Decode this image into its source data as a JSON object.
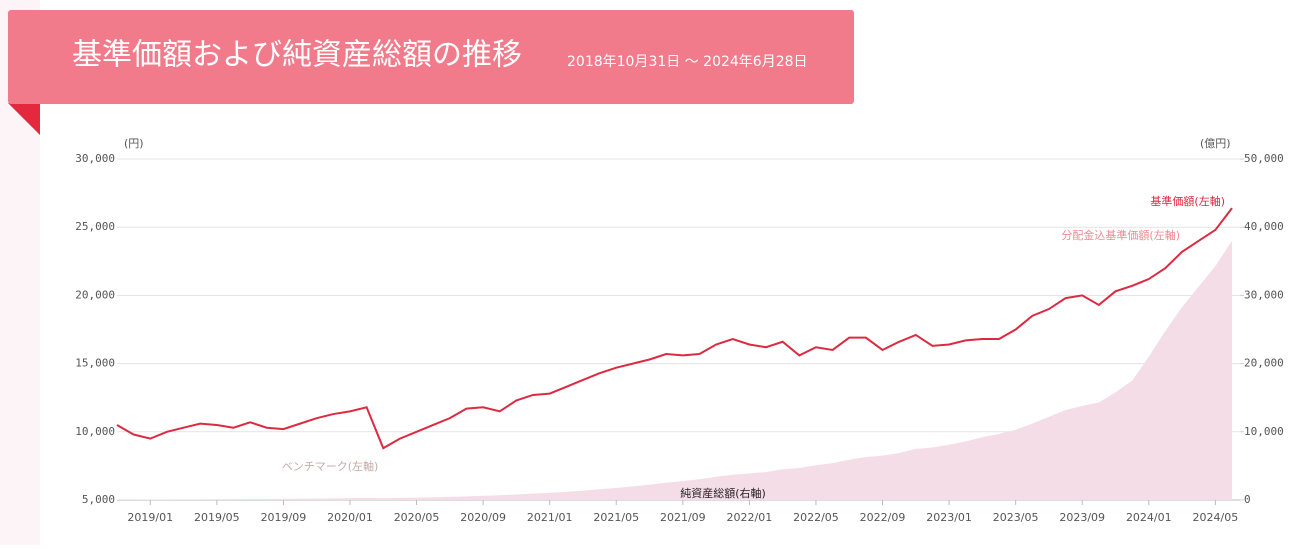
{
  "chart_data": {
    "type": "line",
    "title": "基準価額および純資産総額の推移",
    "subtitle": "2018年10月31日 ～ 2024年6月28日",
    "y_label": "(円)",
    "y2_label": "(億円)",
    "annotations": [
      "分配金込基準価額(左軸)",
      "ベンチマーク(左軸)"
    ],
    "grid": true,
    "categories": [
      null,
      null,
      "2019/01",
      null,
      null,
      null,
      "2019/05",
      null,
      null,
      null,
      "2019/09",
      null,
      null,
      null,
      "2020/01",
      null,
      null,
      null,
      "2020/05",
      null,
      null,
      null,
      "2020/09",
      null,
      null,
      null,
      "2021/01",
      null,
      null,
      null,
      "2021/05",
      null,
      null,
      null,
      "2021/09",
      null,
      null,
      null,
      "2022/01",
      null,
      null,
      null,
      "2022/05",
      null,
      null,
      null,
      "2022/09",
      null,
      null,
      null,
      "2023/01",
      null,
      null,
      null,
      "2023/05",
      null,
      null,
      null,
      "2023/09",
      null,
      null,
      null,
      "2024/01",
      null,
      null,
      null,
      "2024/05",
      null
    ],
    "ylim": [
      5000,
      30000
    ],
    "yticks": [
      {
        "value": 5000,
        "label": "5,000"
      },
      {
        "value": 10000,
        "label": "10,000"
      },
      {
        "value": 15000,
        "label": "15,000"
      },
      {
        "value": 20000,
        "label": "20,000"
      },
      {
        "value": 25000,
        "label": "25,000"
      },
      {
        "value": 30000,
        "label": "30,000"
      }
    ],
    "y2lim": [
      0,
      50000
    ],
    "y2ticks": [
      0,
      {
        "value": 10000,
        "label": "10,000"
      },
      {
        "value": 20000,
        "label": "20,000"
      },
      {
        "value": 30000,
        "label": "30,000"
      },
      {
        "value": 40000,
        "label": "40,000"
      },
      {
        "value": 50000,
        "label": "50,000"
      }
    ],
    "series": [
      {
        "name": "純資産総額(右軸)",
        "color": "#f5dde8",
        "axis": "y2",
        "values": [
          50,
          60,
          70,
          80,
          90,
          100,
          110,
          120,
          140,
          150,
          170,
          190,
          210,
          240,
          270,
          290,
          260,
          300,
          340,
          400,
          460,
          540,
          620,
          690,
          800,
          940,
          1060,
          1200,
          1380,
          1570,
          1780,
          2000,
          2250,
          2530,
          2780,
          3050,
          3400,
          3700,
          3900,
          4100,
          4500,
          4700,
          5100,
          5400,
          5900,
          6300,
          6500,
          6900,
          7500,
          7700,
          8100,
          8600,
          9200,
          9700,
          10300,
          11200,
          12200,
          13200,
          13800,
          14300,
          15800,
          17500,
          21000,
          24800,
          28300,
          31300,
          34300,
          38000
        ]
      },
      {
        "name": "基準価額(左軸)",
        "color": "#dc2a40",
        "values": [
          10500,
          9800,
          9500,
          10000,
          10300,
          10600,
          10500,
          10300,
          10700,
          10300,
          10200,
          10600,
          11000,
          11300,
          11500,
          11800,
          8800,
          9500,
          10000,
          10500,
          11000,
          11700,
          11800,
          11500,
          12300,
          12700,
          12800,
          13300,
          13800,
          14300,
          14700,
          15000,
          15300,
          15700,
          15600,
          15700,
          16400,
          16800,
          16400,
          16200,
          16600,
          15600,
          16200,
          16000,
          16900,
          16900,
          16000,
          16600,
          17100,
          16300,
          16400,
          16700,
          16800,
          16800,
          17500,
          18500,
          19000,
          19800,
          20000,
          19300,
          20300,
          20700,
          21200,
          22000,
          23200,
          24000,
          24800,
          26400
        ]
      }
    ]
  }
}
